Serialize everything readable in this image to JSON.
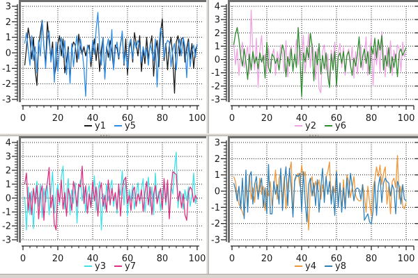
{
  "window": {
    "background": "#ffffff",
    "splitter_color": "#d7d4cf",
    "axis_color": "#1a1a1a",
    "plot_frame_color": "#6e6e6e",
    "grid_color": "#1c1c1c"
  },
  "chart_data": [
    {
      "id": "top-left",
      "type": "line",
      "grid": "dotted",
      "legend_position": "below-axis-center",
      "xlim": [
        0,
        101
      ],
      "ylim": [
        -3,
        3
      ],
      "x_ticks": [
        0,
        20,
        40,
        60,
        80,
        100
      ],
      "y_ticks": [
        3,
        2,
        1,
        0,
        -1,
        -2,
        -3
      ],
      "x_minor_step": 4,
      "y_minor_step": 0.2,
      "x_start": 1,
      "x_step": 1,
      "series": [
        {
          "name": "y1",
          "color": "#1a1a1a",
          "values": [
            -0.8,
            0.3,
            1.6,
            0.9,
            -0.4,
            1.0,
            -1.1,
            -2.1,
            0.5,
            1.3,
            2.1,
            0.4,
            -0.7,
            2.0,
            0.8,
            -0.3,
            0.7,
            -1.5,
            -0.9,
            0.6,
            1.1,
            -0.2,
            0.9,
            -1.3,
            -0.5,
            0.4,
            -1.8,
            0.2,
            0.7,
            0.5,
            -0.6,
            1.2,
            0.3,
            -0.1,
            0.4,
            -0.2,
            0.3,
            0.5,
            -0.9,
            0.1,
            0.9,
            -0.5,
            0.6,
            -1.2,
            0.2,
            1.0,
            -1.6,
            0.4,
            -0.3,
            0.8,
            0.1,
            -1.0,
            0.5,
            0.3,
            -0.4,
            0.6,
            1.2,
            -0.8,
            0.9,
            -1.4,
            0.3,
            0.7,
            -0.6,
            1.3,
            0.6,
            -0.2,
            1.1,
            -1.2,
            0.2,
            -0.7,
            1.0,
            -0.4,
            0.5,
            1.1,
            -1.5,
            0.1,
            0.8,
            -0.9,
            1.3,
            2.2,
            -0.5,
            0.6,
            -1.1,
            0.4,
            1.0,
            -0.3,
            -2.6,
            0.7,
            1.1,
            -0.2,
            0.9,
            1.0,
            -0.6,
            0.3,
            0.9,
            -0.4,
            0.6,
            -1.0,
            0.2,
            0.5
          ]
        },
        {
          "name": "y5",
          "color": "#2e8be6",
          "values": [
            0.6,
            1.3,
            0.2,
            -0.8,
            1.1,
            -0.5,
            0.4,
            -1.3,
            0.8,
            -0.2,
            2.1,
            0.5,
            -1.0,
            0.9,
            1.4,
            -0.6,
            0.3,
            -1.9,
            0.7,
            -1.2,
            0.4,
            1.0,
            -0.3,
            0.8,
            -1.4,
            0.2,
            -2.0,
            0.6,
            -0.9,
            0.3,
            1.1,
            -0.4,
            0.9,
            0.1,
            -1.0,
            -2.8,
            0.5,
            0.2,
            -0.6,
            0.8,
            -0.1,
            1.5,
            2.6,
            0.4,
            -0.8,
            1.0,
            -1.7,
            0.3,
            0.9,
            -0.5,
            1.5,
            -1.1,
            0.2,
            0.7,
            -0.3,
            0.5,
            1.4,
            -0.7,
            0.1,
            -1.0,
            0.6,
            0.9,
            -0.4,
            0.7,
            0.3,
            0.8,
            0.5,
            -0.6,
            0.4,
            -0.2,
            0.3,
            -0.8,
            0.6,
            0.1,
            -0.5,
            0.9,
            -2.2,
            0.4,
            1.6,
            1.0,
            -0.3,
            0.5,
            0.8,
            0.7,
            -0.9,
            0.2,
            0.6,
            -1.1,
            0.3,
            0.9,
            -0.2,
            1.0,
            0.4,
            -1.6,
            0.7,
            -0.9,
            0.1,
            0.5,
            -0.3,
            0.6
          ]
        }
      ]
    },
    {
      "id": "top-right",
      "type": "line",
      "grid": "dotted",
      "legend_position": "below-axis-center",
      "xlim": [
        0,
        101
      ],
      "ylim": [
        -3,
        4
      ],
      "x_ticks": [
        0,
        20,
        40,
        60,
        80,
        100
      ],
      "y_ticks": [
        4,
        3,
        2,
        1,
        0,
        -1,
        -2,
        -3
      ],
      "x_minor_step": 4,
      "y_minor_step": 0.2,
      "x_start": 1,
      "x_step": 1,
      "edge_clipped_right": true,
      "series": [
        {
          "name": "y2",
          "color": "#efa3e3",
          "values": [
            1.2,
            -0.4,
            0.8,
            -1.2,
            0.3,
            1.3,
            -0.6,
            0.2,
            1.0,
            -1.1,
            3.7,
            0.5,
            -0.8,
            1.6,
            -2.1,
            0.7,
            1.8,
            -0.3,
            0.4,
            -1.0,
            0.9,
            -0.5,
            0.3,
            0.8,
            -1.2,
            0.6,
            -0.2,
            1.1,
            0.4,
            -0.9,
            1.4,
            -1.3,
            0.5,
            1.0,
            -0.7,
            0.2,
            1.5,
            -0.4,
            0.9,
            -0.1,
            1.8,
            -1.0,
            0.3,
            1.9,
            -0.6,
            1.2,
            0.5,
            -1.5,
            0.8,
            -2.2,
            -2.5,
            0.6,
            1.1,
            -0.8,
            0.4,
            -1.9,
            0.7,
            -0.3,
            1.3,
            -2.1,
            0.5,
            1.2,
            -0.6,
            0.9,
            -1.2,
            0.3,
            0.8,
            -0.5,
            1.0,
            -1.4,
            0.6,
            -1.1,
            0.4,
            1.1,
            -0.8,
            0.2,
            1.7,
            -1.2,
            0.5,
            1.7,
            -2.0,
            0.8,
            -0.4,
            1.2,
            -1.0,
            2.1,
            0.3,
            -1.3,
            0.9,
            -0.6,
            1.4,
            -1.2,
            0.7,
            -0.2,
            1.1,
            0.8,
            -0.9,
            1.3,
            0.2,
            0.6
          ]
        },
        {
          "name": "y6",
          "color": "#2d8c2d",
          "values": [
            1.1,
            1.9,
            2.4,
            1.5,
            0.3,
            -0.5,
            0.8,
            -0.2,
            -1.5,
            0.4,
            -0.8,
            0.6,
            -0.3,
            0.2,
            -0.7,
            0.5,
            -0.2,
            0.3,
            -1.4,
            1.3,
            -0.6,
            -1.0,
            0.4,
            0.2,
            -0.3,
            0.1,
            -0.8,
            0.3,
            1.1,
            0.6,
            -1.3,
            0.2,
            -0.5,
            0.8,
            -0.9,
            0.4,
            -0.6,
            2.4,
            0.3,
            -2.8,
            0.5,
            -0.2,
            0.9,
            0.1,
            2.0,
            1.0,
            -1.6,
            0.6,
            -0.4,
            1.2,
            -1.1,
            0.3,
            -0.7,
            0.5,
            -1.2,
            -2.1,
            0.4,
            -0.8,
            0.6,
            -2.0,
            0.2,
            0.5,
            -0.3,
            0.6,
            -0.9,
            0.3,
            0.6,
            -0.4,
            -1.2,
            0.1,
            -0.5,
            0.4,
            1.7,
            -0.6,
            0.2,
            0.8,
            -0.3,
            0.6,
            -1.1,
            1.0,
            0.4,
            1.6,
            0.1,
            1.5,
            0.7,
            1.8,
            -0.8,
            0.3,
            -0.5,
            0.9,
            -1.0,
            0.2,
            -0.6,
            0.4,
            -1.3,
            0.5,
            0.8,
            0.3,
            0.6,
            0.9
          ]
        }
      ]
    },
    {
      "id": "bottom-left",
      "type": "line",
      "grid": "dotted",
      "legend_position": "below-axis-center",
      "xlim": [
        0,
        101
      ],
      "ylim": [
        -3,
        4
      ],
      "x_ticks": [
        0,
        20,
        40,
        60,
        80,
        100
      ],
      "y_ticks": [
        4,
        3,
        2,
        1,
        0,
        -1,
        -2,
        -3
      ],
      "x_minor_step": 4,
      "y_minor_step": 0.2,
      "x_start": 1,
      "x_step": 1,
      "series": [
        {
          "name": "y3",
          "color": "#3fe0e8",
          "values": [
            0.1,
            -2.3,
            0.8,
            -1.2,
            0.5,
            -2.2,
            0.3,
            1.2,
            -0.6,
            1.0,
            -1.4,
            0.7,
            -0.3,
            0.9,
            -1.2,
            0.4,
            1.9,
            -1.1,
            0.2,
            1.0,
            -0.5,
            1.5,
            2.3,
            -0.8,
            0.3,
            1.4,
            -1.2,
            0.6,
            -0.4,
            1.1,
            -1.8,
            0.5,
            1.3,
            -0.2,
            0.8,
            -1.0,
            0.4,
            0.9,
            -0.7,
            0.2,
            1.6,
            -0.9,
            0.5,
            1.2,
            -2.3,
            0.3,
            -0.8,
            1.0,
            -0.2,
            0.7,
            1.3,
            -0.6,
            0.4,
            -1.1,
            0.8,
            0.2,
            2.0,
            -0.5,
            1.4,
            -1.3,
            0.6,
            -0.2,
            0.9,
            -0.8,
            0.3,
            1.1,
            -0.4,
            0.6,
            1.4,
            -1.0,
            0.2,
            1.5,
            -0.6,
            0.8,
            -1.2,
            1.8,
            -0.3,
            0.5,
            -0.9,
            0.4,
            1.0,
            -0.5,
            0.7,
            -1.4,
            0.9,
            0.3,
            2.1,
            3.3,
            -0.7,
            0.5,
            0.3,
            -0.8,
            0.6,
            -0.2,
            0.8,
            -0.6,
            0.2,
            1.8,
            -0.4,
            0.1
          ]
        },
        {
          "name": "y7",
          "color": "#e02e80",
          "values": [
            1.0,
            1.8,
            -0.9,
            0.4,
            -1.2,
            0.7,
            -0.4,
            0.9,
            -1.5,
            0.3,
            0.9,
            -1.6,
            0.5,
            1.1,
            2.2,
            -0.7,
            0.2,
            -1.9,
            -2.3,
            0.6,
            -0.3,
            1.3,
            -0.8,
            0.4,
            -1.3,
            0.7,
            0.2,
            -0.9,
            1.2,
            0.5,
            -0.6,
            1.0,
            0.8,
            2.3,
            -0.4,
            0.9,
            -1.1,
            0.3,
            -0.7,
            1.2,
            -0.2,
            0.8,
            -1.3,
            0.5,
            1.1,
            -0.6,
            0.2,
            -1.0,
            1.3,
            -0.5,
            0.7,
            -0.2,
            0.4,
            -0.8,
            1.0,
            -1.3,
            0.6,
            1.3,
            1.5,
            -0.4,
            0.2,
            -0.9,
            0.5,
            0.8,
            -0.6,
            0.3,
            -0.2,
            0.6,
            -1.0,
            0.4,
            1.2,
            -0.5,
            0.8,
            -1.2,
            0.3,
            0.9,
            -0.4,
            0.2,
            0.7,
            -0.8,
            1.4,
            -0.3,
            1.3,
            -1.5,
            0.6,
            1.9,
            1.8,
            1.7,
            -0.2,
            0.5,
            -0.7,
            0.3,
            -1.2,
            -1.6,
            0.4,
            0.8,
            0.6,
            -0.3,
            0.2,
            -0.1
          ]
        }
      ]
    },
    {
      "id": "bottom-right",
      "type": "line",
      "grid": "dotted",
      "legend_position": "below-axis-center",
      "xlim": [
        0,
        101
      ],
      "ylim": [
        -3,
        3
      ],
      "x_ticks": [
        0,
        20,
        40,
        60,
        80,
        100
      ],
      "y_ticks": [
        3,
        2,
        1,
        0,
        -1,
        -2,
        -3
      ],
      "x_minor_step": 4,
      "y_minor_step": 0.2,
      "x_start": 1,
      "x_step": 1,
      "edge_clipped_right": true,
      "series": [
        {
          "name": "y4",
          "color": "#ef9739",
          "values": [
            0.9,
            0.6,
            -0.3,
            -0.8,
            -1.0,
            -1.3,
            -1.6,
            0.4,
            -0.9,
            1.0,
            -0.5,
            0.2,
            -0.7,
            0.5,
            -0.4,
            0.8,
            -0.2,
            0.3,
            -1.2,
            0.1,
            -0.3,
            0.6,
            -0.9,
            0.2,
            1.3,
            -0.5,
            0.8,
            1.1,
            -0.6,
            0.9,
            -1.1,
            0.4,
            1.2,
            1.8,
            -1.4,
            0.6,
            0.9,
            1.1,
            0.3,
            1.6,
            0.8,
            1.2,
            -0.4,
            -2.4,
            0.5,
            0.9,
            -0.3,
            0.6,
            0.2,
            0.7,
            -0.5,
            0.4,
            -0.2,
            0.8,
            1.2,
            1.8,
            -0.6,
            0.3,
            -0.1,
            1.3,
            -0.8,
            0.5,
            -1.2,
            0.7,
            -0.9,
            1.0,
            0.6,
            -0.4,
            0.2,
            0.9,
            -0.3,
            -0.5,
            -0.6,
            -0.6,
            0.4,
            -0.2,
            -1.3,
            0.3,
            -0.7,
            -1.5,
            0.2,
            0.7,
            1.5,
            0.9,
            1.6,
            0.4,
            1.1,
            1.5,
            -0.8,
            0.3,
            -1.4,
            0.6,
            0.8,
            0.2,
            2.2,
            -0.5,
            0.3,
            -0.9,
            -1.1,
            -0.7
          ]
        },
        {
          "name": "y8",
          "color": "#2f80b9",
          "values": [
            0.5,
            0.1,
            -0.6,
            0.3,
            -1.1,
            0.8,
            -1.7,
            1.3,
            -1.3,
            0.9,
            1.2,
            -0.8,
            0.4,
            0.9,
            -0.5,
            0.3,
            0.8,
            -1.0,
            0.2,
            -1.4,
            1.65,
            -1.4,
            -1.4,
            0.6,
            -0.2,
            0.4,
            -0.8,
            1.4,
            -1.2,
            0.5,
            1.5,
            -0.9,
            1.4,
            0.3,
            -1.6,
            0.7,
            1.0,
            0.9,
            1.1,
            -1.3,
            1.2,
            -0.6,
            -1.9,
            0.4,
            0.8,
            -0.3,
            0.5,
            -0.9,
            0.7,
            -1.3,
            0.2,
            1.4,
            -0.7,
            0.9,
            -0.2,
            0.6,
            -0.8,
            0.3,
            -1.5,
            1.2,
            -1.0,
            0.5,
            -1.3,
            0.2,
            -1.1,
            0.8,
            -0.4,
            1.1,
            0.3,
            -0.6,
            0.1,
            0.2,
            0.1,
            -0.5,
            0.4,
            -1.8,
            -1.6,
            -1.4,
            -1.9,
            -2.05,
            -1.2,
            0.6,
            -1.5,
            0.3,
            0.9,
            -0.7,
            0.5,
            0.8,
            0.6,
            0.5,
            -0.3,
            0.4,
            0.1,
            -1.4,
            0.6,
            0.3,
            -0.8,
            0.4,
            -0.5,
            -0.6
          ]
        }
      ]
    }
  ]
}
